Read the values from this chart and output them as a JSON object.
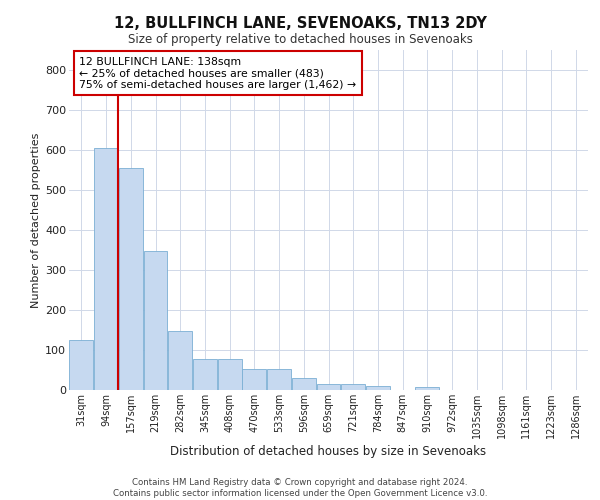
{
  "title1": "12, BULLFINCH LANE, SEVENOAKS, TN13 2DY",
  "title2": "Size of property relative to detached houses in Sevenoaks",
  "xlabel": "Distribution of detached houses by size in Sevenoaks",
  "ylabel": "Number of detached properties",
  "categories": [
    "31sqm",
    "94sqm",
    "157sqm",
    "219sqm",
    "282sqm",
    "345sqm",
    "408sqm",
    "470sqm",
    "533sqm",
    "596sqm",
    "659sqm",
    "721sqm",
    "784sqm",
    "847sqm",
    "910sqm",
    "972sqm",
    "1035sqm",
    "1098sqm",
    "1161sqm",
    "1223sqm",
    "1286sqm"
  ],
  "values": [
    125,
    605,
    555,
    347,
    148,
    78,
    78,
    52,
    52,
    30,
    14,
    14,
    10,
    0,
    7,
    0,
    0,
    0,
    0,
    0,
    0
  ],
  "bar_color": "#c6d9f0",
  "bar_edge_color": "#7bafd4",
  "vline_color": "#cc0000",
  "annotation_text": "12 BULLFINCH LANE: 138sqm\n← 25% of detached houses are smaller (483)\n75% of semi-detached houses are larger (1,462) →",
  "annotation_box_color": "#ffffff",
  "annotation_box_edge_color": "#cc0000",
  "ylim": [
    0,
    850
  ],
  "yticks": [
    0,
    100,
    200,
    300,
    400,
    500,
    600,
    700,
    800
  ],
  "footer": "Contains HM Land Registry data © Crown copyright and database right 2024.\nContains public sector information licensed under the Open Government Licence v3.0.",
  "bg_color": "#ffffff",
  "grid_color": "#d0d8e8"
}
